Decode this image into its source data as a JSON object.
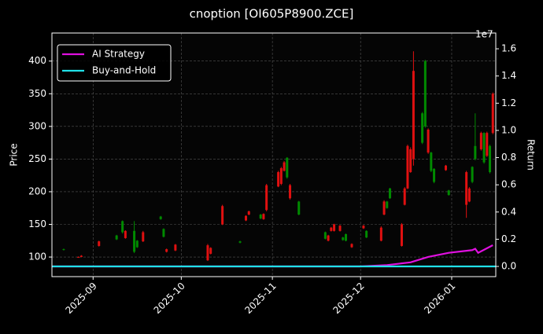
{
  "chart_data": {
    "type": "candlestick",
    "title": "cnoption [OI605P8900.ZCE]",
    "ylabel": "Price",
    "y2label": "Return",
    "y2_offset_label": "1e7",
    "up_color": "#008a00",
    "down_color": "#e01010",
    "grid": true,
    "legend": "upper left",
    "xlim": [
      "2025-08-18",
      "2026-01-16"
    ],
    "xticks": [
      {
        "value": "2025-09-01",
        "label": "2025-09"
      },
      {
        "value": "2025-10-01",
        "label": "2025-10"
      },
      {
        "value": "2025-11-01",
        "label": "2025-11"
      },
      {
        "value": "2025-12-01",
        "label": "2025-12"
      },
      {
        "value": "2026-01-01",
        "label": "2026-01"
      }
    ],
    "ylim": [
      70,
      443
    ],
    "yticks": [
      100,
      150,
      200,
      250,
      300,
      350,
      400
    ],
    "y2lim": [
      -750000,
      17160000
    ],
    "y2ticks": [
      {
        "value": 0,
        "label": "0.0"
      },
      {
        "value": 2000000,
        "label": "0.2"
      },
      {
        "value": 4000000,
        "label": "0.4"
      },
      {
        "value": 6000000,
        "label": "0.6"
      },
      {
        "value": 8000000,
        "label": "0.8"
      },
      {
        "value": 10000000,
        "label": "1.0"
      },
      {
        "value": 12000000,
        "label": "1.2"
      },
      {
        "value": 14000000,
        "label": "1.4"
      },
      {
        "value": 16000000,
        "label": "1.6"
      }
    ],
    "x": [
      "2025-08-22",
      "2025-08-27",
      "2025-08-28",
      "2025-09-03",
      "2025-09-09",
      "2025-09-11",
      "2025-09-12",
      "2025-09-15",
      "2025-09-16",
      "2025-09-18",
      "2025-09-24",
      "2025-09-25",
      "2025-09-26",
      "2025-09-29",
      "2025-10-10",
      "2025-10-11",
      "2025-10-15",
      "2025-10-21",
      "2025-10-23",
      "2025-10-24",
      "2025-10-28",
      "2025-10-29",
      "2025-10-30",
      "2025-11-03",
      "2025-11-04",
      "2025-11-05",
      "2025-11-06",
      "2025-11-07",
      "2025-11-10",
      "2025-11-19",
      "2025-11-20",
      "2025-11-21",
      "2025-11-22",
      "2025-11-24",
      "2025-11-25",
      "2025-11-26",
      "2025-11-28",
      "2025-12-02",
      "2025-12-03",
      "2025-12-08",
      "2025-12-09",
      "2025-12-10",
      "2025-12-11",
      "2025-12-15",
      "2025-12-16",
      "2025-12-17",
      "2025-12-18",
      "2025-12-19",
      "2025-12-22",
      "2025-12-23",
      "2025-12-24",
      "2025-12-25",
      "2025-12-26",
      "2025-12-30",
      "2025-12-31",
      "2026-01-06",
      "2026-01-07",
      "2026-01-08",
      "2026-01-09",
      "2026-01-11",
      "2026-01-12",
      "2026-01-13",
      "2026-01-14",
      "2026-01-15"
    ],
    "open": [
      111,
      100,
      102,
      124,
      127,
      138,
      140,
      108,
      115,
      138,
      158,
      131,
      112,
      119,
      118,
      114,
      178,
      122,
      163,
      170,
      159,
      166,
      210,
      230,
      236,
      245,
      222,
      210,
      165,
      128,
      133,
      145,
      150,
      148,
      126,
      125,
      120,
      148,
      130,
      145,
      185,
      175,
      190,
      150,
      205,
      270,
      265,
      385,
      275,
      300,
      295,
      232,
      215,
      240,
      195,
      230,
      205,
      215,
      250,
      290,
      245,
      290,
      230,
      350
    ],
    "high": [
      113,
      101,
      103,
      125,
      134,
      156,
      141,
      155,
      126,
      140,
      163,
      144,
      113,
      120,
      120,
      115,
      180,
      125,
      164,
      171,
      166,
      167,
      212,
      232,
      238,
      247,
      253,
      212,
      186,
      139,
      134,
      146,
      151,
      149,
      131,
      136,
      121,
      149,
      141,
      147,
      187,
      186,
      206,
      152,
      207,
      272,
      268,
      415,
      322,
      402,
      297,
      261,
      236,
      241,
      203,
      232,
      207,
      239,
      320,
      292,
      291,
      292,
      272,
      352
    ],
    "low": [
      110,
      99,
      100,
      116,
      126,
      136,
      128,
      106,
      114,
      123,
      157,
      130,
      107,
      109,
      94,
      104,
      149,
      121,
      155,
      164,
      158,
      157,
      170,
      207,
      210,
      231,
      220,
      188,
      164,
      127,
      124,
      139,
      139,
      139,
      125,
      124,
      114,
      143,
      129,
      124,
      164,
      174,
      189,
      116,
      179,
      204,
      229,
      240,
      273,
      298,
      258,
      230,
      213,
      232,
      194,
      160,
      184,
      213,
      248,
      263,
      243,
      253,
      228,
      288
    ],
    "close": [
      112,
      99,
      100,
      117,
      133,
      155,
      129,
      140,
      125,
      124,
      162,
      143,
      108,
      110,
      95,
      105,
      150,
      124,
      156,
      165,
      165,
      158,
      172,
      208,
      212,
      232,
      252,
      190,
      185,
      138,
      125,
      140,
      140,
      140,
      130,
      135,
      115,
      144,
      140,
      125,
      165,
      185,
      205,
      117,
      180,
      205,
      230,
      250,
      320,
      400,
      260,
      260,
      235,
      233,
      202,
      180,
      185,
      238,
      270,
      265,
      290,
      255,
      270,
      290
    ],
    "series": [
      {
        "name": "AI Strategy",
        "color": "#e010e0",
        "axis": "y2",
        "x": [
          "2025-08-18",
          "2025-12-01",
          "2025-12-10",
          "2025-12-18",
          "2025-12-24",
          "2025-12-31",
          "2026-01-08",
          "2026-01-09",
          "2026-01-10",
          "2026-01-15"
        ],
        "values": [
          0,
          0,
          100000,
          300000,
          700000,
          1000000,
          1200000,
          1300000,
          1000000,
          1560000
        ]
      },
      {
        "name": "Buy-and-Hold",
        "color": "#20e0e8",
        "axis": "y2",
        "x": [
          "2025-08-18",
          "2026-01-16"
        ],
        "values": [
          0,
          0
        ]
      }
    ]
  }
}
